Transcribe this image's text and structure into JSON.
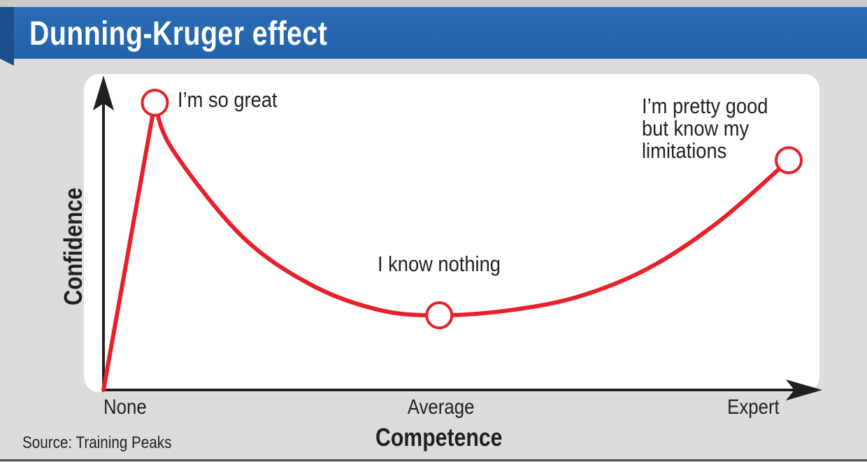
{
  "title": "Dunning-Kruger effect",
  "source": "Source: Training Peaks",
  "colors": {
    "title_bar": "#2466ae",
    "background": "#dcdcdd",
    "plot_bg": "#ffffff",
    "curve": "#e8202a",
    "axis": "#231f20"
  },
  "chart_data": {
    "type": "line",
    "title": "Dunning-Kruger effect",
    "xlabel": "Competence",
    "ylabel": "Confidence",
    "x_ticks": [
      "None",
      "Average",
      "Expert"
    ],
    "xlim": [
      0,
      100
    ],
    "ylim": [
      0,
      100
    ],
    "grid": false,
    "legend": "none",
    "series": [
      {
        "x": [
          0,
          7.5,
          10,
          20,
          30,
          40,
          49,
          60,
          70,
          80,
          90,
          100
        ],
        "y": [
          0,
          100,
          84,
          54,
          37,
          28,
          26,
          28,
          33,
          43,
          59,
          80
        ]
      }
    ],
    "annotations": [
      {
        "label": "I’m so great",
        "x": 7.5,
        "y": 100
      },
      {
        "label": "I know nothing",
        "x": 49,
        "y": 26
      },
      {
        "label": "I’m pretty good but know my limitations",
        "lines": [
          "I’m pretty good",
          "but know my",
          "limitations"
        ],
        "x": 100,
        "y": 80
      }
    ]
  }
}
